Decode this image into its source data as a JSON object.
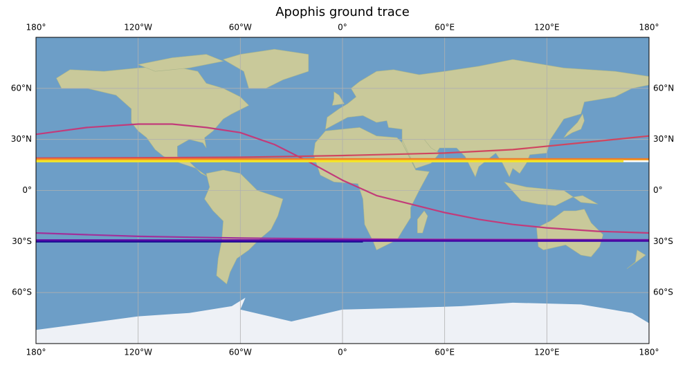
{
  "title": "Apophis ground trace",
  "axes": {
    "top_labels": [
      "180°",
      "120°W",
      "60°W",
      "0°",
      "60°E",
      "120°E",
      "180°"
    ],
    "bottom_labels": [
      "180°",
      "120°W",
      "60°W",
      "0°",
      "60°E",
      "120°E",
      "180°"
    ],
    "lon_values": [
      -180,
      -120,
      -60,
      0,
      60,
      120,
      180
    ],
    "left_labels": [
      "60°N",
      "30°N",
      "0°",
      "30°S",
      "60°S"
    ],
    "right_labels": [
      "60°N",
      "30°N",
      "0°",
      "30°S",
      "60°S"
    ],
    "lat_values": [
      60,
      30,
      0,
      -30,
      -60
    ],
    "xlim": [
      -180,
      180
    ],
    "ylim": [
      -90,
      90
    ]
  },
  "colors": {
    "ocean": "#6d9ec7",
    "land": "#c9c99a",
    "ice": "#eef1f6",
    "grid": "#b0b0b0"
  },
  "chart_data": {
    "type": "line",
    "projection": "PlateCarree",
    "grid": true,
    "series": [
      {
        "color": "#c23b7a",
        "width": 2.2,
        "points": [
          [
            -180,
            33
          ],
          [
            -150,
            37
          ],
          [
            -120,
            39
          ],
          [
            -100,
            39
          ],
          [
            -80,
            37
          ],
          [
            -60,
            34
          ],
          [
            -40,
            27
          ],
          [
            -20,
            17
          ],
          [
            0,
            6
          ],
          [
            20,
            -3
          ],
          [
            40,
            -8
          ],
          [
            60,
            -13
          ],
          [
            80,
            -17
          ],
          [
            100,
            -20
          ],
          [
            120,
            -22
          ],
          [
            150,
            -24
          ],
          [
            180,
            -25
          ]
        ]
      },
      {
        "color": "#d0455f",
        "width": 2.2,
        "points": [
          [
            -180,
            19
          ],
          [
            -120,
            19.2
          ],
          [
            -60,
            19.5
          ],
          [
            0,
            20.5
          ],
          [
            60,
            22
          ],
          [
            100,
            24
          ],
          [
            140,
            28
          ],
          [
            180,
            32
          ]
        ]
      },
      {
        "color": "#f07a2a",
        "width": 2.5,
        "points": [
          [
            -180,
            18.5
          ],
          [
            180,
            18.5
          ]
        ]
      },
      {
        "color": "#f5a623",
        "width": 2.5,
        "points": [
          [
            -180,
            17.8
          ],
          [
            180,
            17.8
          ]
        ]
      },
      {
        "color": "#f6e625",
        "width": 3,
        "points": [
          [
            -180,
            17.2
          ],
          [
            165,
            17.2
          ]
        ]
      },
      {
        "color": "#ffffff",
        "width": 2.5,
        "points": [
          [
            165,
            17.2
          ],
          [
            180,
            17.2
          ]
        ]
      },
      {
        "color": "#a1309a",
        "width": 2.2,
        "points": [
          [
            -180,
            -25
          ],
          [
            -150,
            -26
          ],
          [
            -120,
            -27
          ],
          [
            -60,
            -28
          ],
          [
            0,
            -28.5
          ],
          [
            60,
            -28.8
          ],
          [
            120,
            -28.9
          ],
          [
            180,
            -29
          ]
        ]
      },
      {
        "color": "#6a0fa3",
        "width": 2.5,
        "points": [
          [
            -180,
            -29.2
          ],
          [
            180,
            -29.2
          ]
        ]
      },
      {
        "color": "#3a07a5",
        "width": 2,
        "points": [
          [
            -180,
            -29.8
          ],
          [
            180,
            -29.8
          ]
        ]
      },
      {
        "color": "#0d0887",
        "width": 1.2,
        "points": [
          [
            -180,
            -30.3
          ],
          [
            12,
            -30.3
          ]
        ]
      }
    ]
  }
}
